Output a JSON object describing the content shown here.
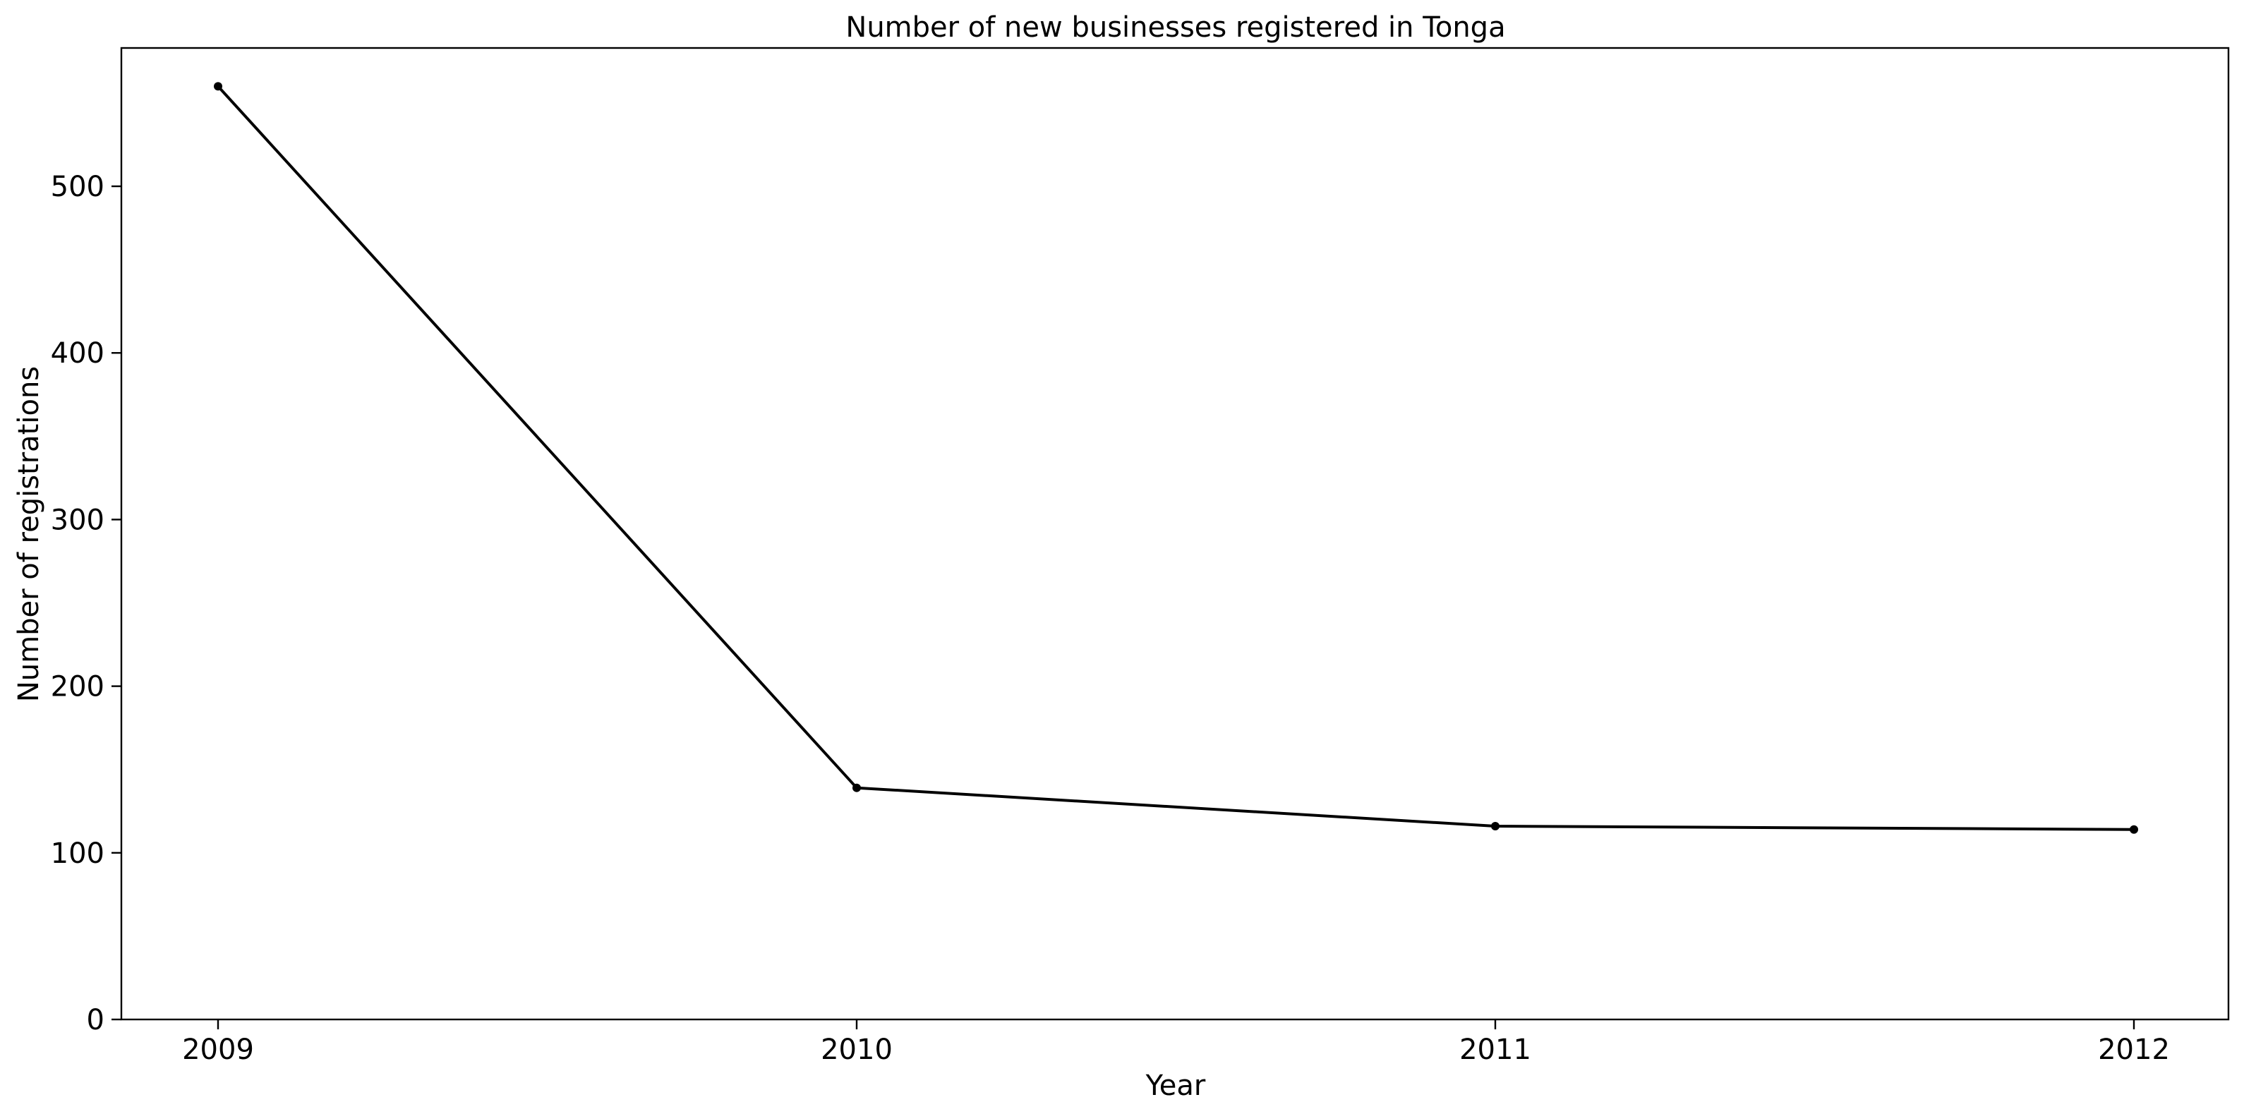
{
  "chart_data": {
    "type": "line",
    "title": "Number of new businesses registered in Tonga",
    "xlabel": "Year",
    "ylabel": "Number of registrations",
    "x": [
      "2009",
      "2010",
      "2011",
      "2012"
    ],
    "series": [
      {
        "values": [
          560,
          139,
          116,
          114
        ],
        "color": "#000000"
      }
    ],
    "yticks": [
      0,
      100,
      200,
      300,
      400,
      500
    ],
    "ylim": [
      0,
      583
    ],
    "grid": false
  }
}
